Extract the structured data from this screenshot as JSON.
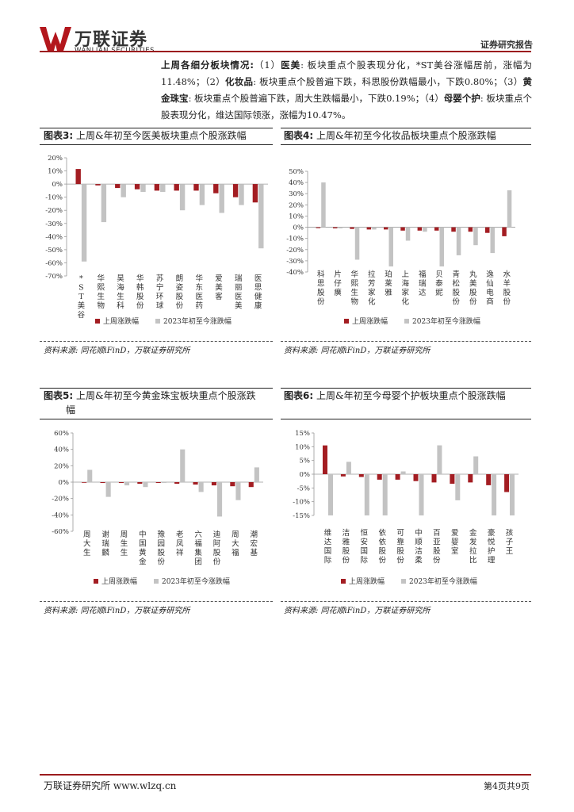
{
  "header": {
    "logo_cn": "万联证券",
    "logo_en": "WANLIAN SECURITIES",
    "report_type": "证券研究报告"
  },
  "intro": {
    "lead": "上周各细分板块情况:",
    "seg1_num": "（1）",
    "seg1_name": "医美",
    "seg1_text": ": 板块重点个股表现分化，*ST美谷涨幅居前，涨幅为11.48%；",
    "seg2_num": "（2）",
    "seg2_name": "化妆品",
    "seg2_text": ": 板块重点个股普遍下跌，科思股份跌幅最小，下跌0.80%；",
    "seg3_num": "（3）",
    "seg3_name": "黄金珠宝",
    "seg3_text": ": 板块重点个股普遍下跌，周大生跌幅最小，下跌0.19%；",
    "seg4_num": "（4）",
    "seg4_name": "母婴个护",
    "seg4_text": ": 板块重点个股表现分化，维达国际领涨，涨幅为10.47%。"
  },
  "figures": [
    {
      "label": "图表3:",
      "title": "上周&年初至今医美板块重点个股涨跌幅",
      "source": "资料来源: 同花顺iFinD，万联证券研究所"
    },
    {
      "label": "图表4:",
      "title": "上周&年初至今化妆品板块重点个股涨跌幅",
      "source": "资料来源: 同花顺iFinD，万联证券研究所"
    },
    {
      "label": "图表5:",
      "title": "上周&年初至今黄金珠宝板块重点个股涨跌",
      "title2": "幅",
      "source": "资料来源: 同花顺iFinD，万联证券研究所"
    },
    {
      "label": "图表6:",
      "title": "上周&年初至今母婴个护板块重点个股涨跌幅",
      "source": "资料来源: 同花顺iFinD，万联证券研究所"
    }
  ],
  "legend": {
    "weekly": "上周涨跌幅",
    "ytd": "2023年初至今涨跌幅"
  },
  "colors": {
    "weekly": "#a31d22",
    "ytd": "#c3c3c3",
    "accent": "#9b1b1e"
  },
  "chart_data": [
    {
      "type": "bar",
      "categories": [
        "*ST美谷",
        "华熙生物",
        "昊海生科",
        "华韩股份",
        "苏宁环球",
        "朗姿股份",
        "华东医药",
        "爱美客",
        "瑞丽医美",
        "医思健康"
      ],
      "series": [
        {
          "name": "上周涨跌幅",
          "values": [
            11.48,
            -1,
            -3,
            -4,
            -5,
            -5,
            -5,
            -7,
            -10,
            -14
          ]
        },
        {
          "name": "2023年初至今涨跌幅",
          "values": [
            -59,
            -29,
            -10,
            -6,
            -6,
            -20,
            -16,
            -22,
            -16,
            -49
          ]
        }
      ],
      "ylim": [
        -70,
        20
      ],
      "yticks": [
        20,
        10,
        0,
        -10,
        -20,
        -30,
        -40,
        -50,
        -60,
        -70
      ],
      "ytick_labels": [
        "20%",
        "10%",
        "0%",
        "-10%",
        "-20%",
        "-30%",
        "-40%",
        "-50%",
        "-60%",
        "-70%"
      ],
      "legend": "bottom"
    },
    {
      "type": "bar",
      "categories": [
        "科思股份",
        "片仔癀",
        "华熙生物",
        "拉芳家化",
        "珀莱雅",
        "上海家化",
        "福瑞达",
        "贝泰妮",
        "青松股份",
        "丸美股份",
        "逸仙电商",
        "水羊股份"
      ],
      "series": [
        {
          "name": "上周涨跌幅",
          "values": [
            -0.8,
            -1,
            -1.5,
            -2,
            -2,
            -3,
            -3,
            -3,
            -4,
            -4,
            -5,
            -8
          ]
        },
        {
          "name": "2023年初至今涨跌幅",
          "values": [
            40,
            -1,
            -29,
            -2,
            -35,
            -12,
            -4,
            -35,
            -25,
            -16,
            -23,
            33
          ]
        }
      ],
      "ylim": [
        -40,
        50
      ],
      "yticks": [
        50,
        40,
        30,
        20,
        10,
        0,
        -10,
        -20,
        -30,
        -40
      ],
      "ytick_labels": [
        "50%",
        "40%",
        "30%",
        "20%",
        "10%",
        "0%",
        "-10%",
        "-20%",
        "-30%",
        "-40%"
      ],
      "legend": "bottom"
    },
    {
      "type": "bar",
      "categories": [
        "周大生",
        "谢瑞麟",
        "周生生",
        "中国黄金",
        "豫园股份",
        "老凤祥",
        "六福集团",
        "迪阿股份",
        "周大福",
        "潮宏基"
      ],
      "series": [
        {
          "name": "上周涨跌幅",
          "values": [
            -0.19,
            -1,
            -1,
            -2,
            -1,
            -2,
            -3,
            -4,
            -5,
            -6
          ]
        },
        {
          "name": "2023年初至今涨跌幅",
          "values": [
            15,
            -18,
            -4,
            -6,
            -1,
            40,
            -12,
            -42,
            -22,
            18
          ]
        }
      ],
      "ylim": [
        -60,
        60
      ],
      "yticks": [
        60,
        40,
        20,
        0,
        -20,
        -40,
        -60
      ],
      "ytick_labels": [
        "60%",
        "40%",
        "20%",
        "0%",
        "-20%",
        "-40%",
        "-60%"
      ],
      "legend": "bottom"
    },
    {
      "type": "bar",
      "categories": [
        "维达国际",
        "洁雅股份",
        "恒安国际",
        "依依股份",
        "可靠股份",
        "中顺洁柔",
        "百亚股份",
        "爱婴室",
        "金发拉比",
        "豪悦护理",
        "孩子王"
      ],
      "series": [
        {
          "name": "上周涨跌幅",
          "values": [
            10.47,
            -0.8,
            -1,
            -2,
            -2,
            -2.5,
            -3,
            -3.5,
            -3,
            -4,
            -6.5
          ]
        },
        {
          "name": "2023年初至今涨跌幅",
          "values": [
            -15,
            4.5,
            -15,
            -15,
            1,
            -15,
            10.5,
            -9.5,
            6.5,
            -15,
            -15
          ]
        }
      ],
      "ylim": [
        -15,
        15
      ],
      "yticks": [
        15,
        10,
        5,
        0,
        -5,
        -10,
        -15
      ],
      "ytick_labels": [
        "15%",
        "10%",
        "5%",
        "0%",
        "-5%",
        "-10%",
        "-15%"
      ],
      "legend": "bottom"
    }
  ],
  "footer": {
    "left": "万联证券研究所 www.wlzq.cn",
    "right": "第4页共9页"
  }
}
